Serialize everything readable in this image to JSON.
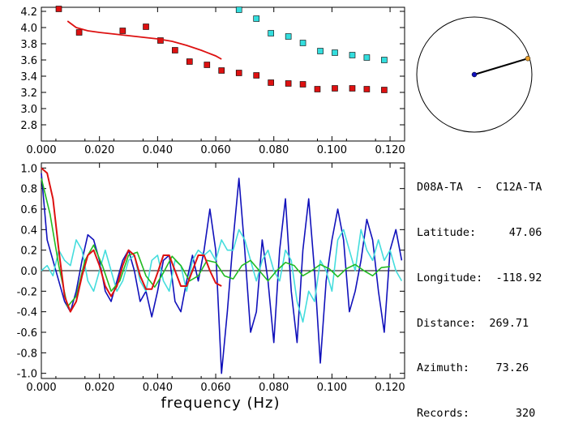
{
  "info": {
    "station_pair": "D08A-TA  -  C12A-TA",
    "lines": [
      "Latitude:     47.06",
      "Longitude:  -118.92",
      "Distance:  269.71",
      "Azimuth:    73.26",
      "Records:       320"
    ]
  },
  "colors": {
    "red": "#dd1111",
    "cyan": "#33dddd",
    "blue": "#1111bb",
    "green": "#22bb22",
    "lightcyan": "#44dddd",
    "orange": "#e8a030"
  },
  "chart_data": [
    {
      "type": "scatter",
      "title": "",
      "xlabel": "",
      "ylabel": "",
      "xlim": [
        0.0,
        0.125
      ],
      "ylim": [
        2.6,
        4.25
      ],
      "xticks": [
        "0.000",
        "0.020",
        "0.040",
        "0.060",
        "0.080",
        "0.100",
        "0.120"
      ],
      "xtick_values": [
        0,
        0.02,
        0.04,
        0.06,
        0.08,
        0.1,
        0.12
      ],
      "yticks": [
        "4.2",
        "4.0",
        "3.8",
        "3.6",
        "3.4",
        "3.2",
        "3.0",
        "2.8"
      ],
      "ytick_values": [
        4.2,
        4.0,
        3.8,
        3.6,
        3.4,
        3.2,
        3.0,
        2.8
      ],
      "series": [
        {
          "color": "#dd1111",
          "marker": "square",
          "x": [
            0.006,
            0.013,
            0.028,
            0.036,
            0.041,
            0.046,
            0.051,
            0.057,
            0.062,
            0.068,
            0.074,
            0.079,
            0.085,
            0.09,
            0.095,
            0.101,
            0.107,
            0.112,
            0.118
          ],
          "y": [
            4.23,
            3.94,
            3.96,
            4.01,
            3.84,
            3.72,
            3.58,
            3.54,
            3.47,
            3.44,
            3.41,
            3.32,
            3.31,
            3.3,
            3.24,
            3.25,
            3.25,
            3.24,
            3.23
          ]
        },
        {
          "color": "#33dddd",
          "marker": "square",
          "x": [
            0.068,
            0.074,
            0.079,
            0.085,
            0.09,
            0.096,
            0.101,
            0.107,
            0.112,
            0.118
          ],
          "y": [
            4.22,
            4.11,
            3.93,
            3.89,
            3.81,
            3.71,
            3.69,
            3.66,
            3.63,
            3.6
          ]
        },
        {
          "color": "#dd1111",
          "marker": "line",
          "x": [
            0.009,
            0.012,
            0.016,
            0.02,
            0.025,
            0.03,
            0.035,
            0.04,
            0.045,
            0.05,
            0.055,
            0.06,
            0.062
          ],
          "y": [
            4.08,
            4.0,
            3.96,
            3.94,
            3.92,
            3.9,
            3.88,
            3.86,
            3.83,
            3.78,
            3.72,
            3.65,
            3.61
          ]
        }
      ]
    },
    {
      "type": "line",
      "title": "",
      "xlabel": "frequency (Hz)",
      "ylabel": "",
      "xlim": [
        0.0,
        0.125
      ],
      "ylim": [
        -1.05,
        1.05
      ],
      "xticks": [
        "0.000",
        "0.020",
        "0.040",
        "0.060",
        "0.080",
        "0.100",
        "0.120"
      ],
      "xtick_values": [
        0,
        0.02,
        0.04,
        0.06,
        0.08,
        0.1,
        0.12
      ],
      "yticks": [
        "1.0",
        "0.8",
        "0.6",
        "0.4",
        "0.2",
        "0.0",
        "-0.2",
        "-0.4",
        "-0.6",
        "-0.8",
        "-1.0"
      ],
      "ytick_values": [
        1.0,
        0.8,
        0.6,
        0.4,
        0.2,
        0.0,
        -0.2,
        -0.4,
        -0.6,
        -0.8,
        -1.0
      ],
      "series": [
        {
          "color": "#1111bb",
          "x": [
            0.0,
            0.002,
            0.004,
            0.006,
            0.008,
            0.01,
            0.012,
            0.014,
            0.016,
            0.018,
            0.02,
            0.022,
            0.024,
            0.026,
            0.028,
            0.03,
            0.032,
            0.034,
            0.036,
            0.038,
            0.04,
            0.042,
            0.044,
            0.046,
            0.048,
            0.05,
            0.052,
            0.054,
            0.056,
            0.058,
            0.06,
            0.062,
            0.064,
            0.066,
            0.068,
            0.07,
            0.072,
            0.074,
            0.076,
            0.078,
            0.08,
            0.082,
            0.084,
            0.086,
            0.088,
            0.09,
            0.092,
            0.094,
            0.096,
            0.098,
            0.1,
            0.102,
            0.104,
            0.106,
            0.108,
            0.11,
            0.112,
            0.114,
            0.116,
            0.118,
            0.12,
            0.122,
            0.124
          ],
          "y": [
            0.95,
            0.3,
            0.1,
            -0.1,
            -0.3,
            -0.4,
            -0.2,
            0.1,
            0.35,
            0.3,
            0.1,
            -0.2,
            -0.3,
            -0.1,
            0.1,
            0.2,
            0.0,
            -0.3,
            -0.2,
            -0.45,
            -0.2,
            0.1,
            0.15,
            -0.3,
            -0.4,
            -0.1,
            0.15,
            -0.1,
            0.2,
            0.6,
            0.2,
            -1.0,
            -0.4,
            0.3,
            0.9,
            0.2,
            -0.6,
            -0.4,
            0.3,
            -0.1,
            -0.7,
            0.2,
            0.7,
            -0.2,
            -0.7,
            0.2,
            0.7,
            0.0,
            -0.9,
            -0.1,
            0.3,
            0.6,
            0.3,
            -0.4,
            -0.2,
            0.1,
            0.5,
            0.3,
            -0.2,
            -0.6,
            0.2,
            0.4,
            0.1
          ]
        },
        {
          "color": "#44dddd",
          "x": [
            0.0,
            0.002,
            0.004,
            0.006,
            0.008,
            0.01,
            0.012,
            0.014,
            0.016,
            0.018,
            0.02,
            0.022,
            0.024,
            0.026,
            0.028,
            0.03,
            0.032,
            0.034,
            0.036,
            0.038,
            0.04,
            0.042,
            0.044,
            0.046,
            0.048,
            0.05,
            0.052,
            0.054,
            0.056,
            0.058,
            0.06,
            0.062,
            0.064,
            0.066,
            0.068,
            0.07,
            0.072,
            0.074,
            0.076,
            0.078,
            0.08,
            0.082,
            0.084,
            0.086,
            0.088,
            0.09,
            0.092,
            0.094,
            0.096,
            0.098,
            0.1,
            0.102,
            0.104,
            0.106,
            0.108,
            0.11,
            0.112,
            0.114,
            0.116,
            0.118,
            0.12,
            0.122,
            0.124
          ],
          "y": [
            0.0,
            0.05,
            -0.05,
            0.2,
            0.1,
            0.05,
            0.3,
            0.2,
            -0.1,
            -0.2,
            0.0,
            0.2,
            0.0,
            -0.2,
            -0.1,
            0.1,
            0.15,
            -0.1,
            -0.2,
            0.1,
            0.15,
            -0.1,
            -0.2,
            0.1,
            0.05,
            -0.2,
            0.1,
            0.2,
            0.15,
            0.2,
            0.1,
            0.3,
            0.2,
            0.2,
            0.4,
            0.3,
            0.1,
            -0.1,
            0.1,
            0.2,
            0.0,
            -0.1,
            0.2,
            0.1,
            -0.3,
            -0.5,
            -0.2,
            -0.3,
            0.1,
            0.0,
            -0.2,
            0.3,
            0.4,
            0.2,
            0.0,
            0.4,
            0.2,
            0.1,
            0.3,
            0.1,
            0.2,
            0.0,
            -0.1
          ]
        },
        {
          "color": "#22bb22",
          "x": [
            0.0,
            0.003,
            0.006,
            0.009,
            0.012,
            0.015,
            0.018,
            0.021,
            0.024,
            0.027,
            0.03,
            0.033,
            0.036,
            0.039,
            0.042,
            0.045,
            0.048,
            0.051,
            0.054,
            0.057,
            0.06,
            0.063,
            0.066,
            0.069,
            0.072,
            0.075,
            0.078,
            0.081,
            0.084,
            0.087,
            0.09,
            0.093,
            0.096,
            0.099,
            0.102,
            0.105,
            0.108,
            0.111,
            0.114,
            0.117,
            0.12
          ],
          "y": [
            0.9,
            0.55,
            0.05,
            -0.35,
            -0.25,
            0.1,
            0.25,
            0.05,
            -0.2,
            -0.1,
            0.15,
            0.18,
            -0.05,
            -0.16,
            -0.02,
            0.14,
            0.05,
            -0.1,
            -0.05,
            0.1,
            0.08,
            -0.05,
            -0.08,
            0.05,
            0.1,
            0.0,
            -0.1,
            0.0,
            0.08,
            0.05,
            -0.05,
            0.0,
            0.06,
            0.02,
            -0.06,
            0.02,
            0.06,
            0.0,
            -0.05,
            0.03,
            0.04
          ]
        },
        {
          "color": "#dd1111",
          "x": [
            0.0,
            0.002,
            0.004,
            0.006,
            0.008,
            0.01,
            0.012,
            0.014,
            0.016,
            0.018,
            0.02,
            0.022,
            0.024,
            0.026,
            0.028,
            0.03,
            0.032,
            0.034,
            0.036,
            0.038,
            0.04,
            0.042,
            0.044,
            0.046,
            0.048,
            0.05,
            0.052,
            0.054,
            0.056,
            0.058,
            0.06,
            0.062
          ],
          "y": [
            1.0,
            0.95,
            0.7,
            0.2,
            -0.25,
            -0.4,
            -0.3,
            -0.05,
            0.15,
            0.2,
            0.05,
            -0.15,
            -0.25,
            -0.15,
            0.05,
            0.2,
            0.15,
            -0.05,
            -0.18,
            -0.18,
            -0.02,
            0.15,
            0.15,
            0.0,
            -0.15,
            -0.15,
            0.0,
            0.15,
            0.15,
            0.0,
            -0.12,
            -0.15
          ]
        }
      ],
      "hline": 0.0
    },
    {
      "type": "polar",
      "title": "",
      "azimuth_deg": 73.26,
      "radius_fraction": 0.97
    }
  ]
}
